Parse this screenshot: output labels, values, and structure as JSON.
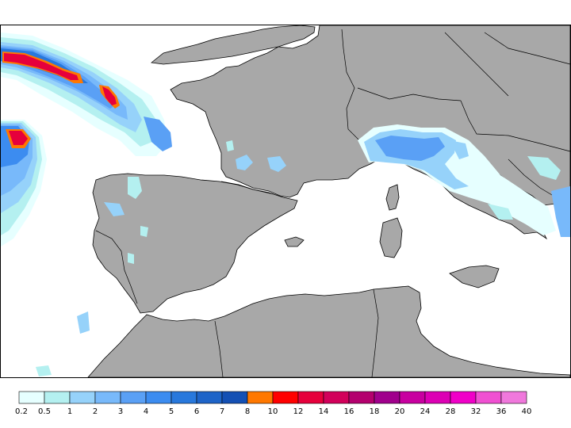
{
  "map": {
    "land_color": "#a8a8a8",
    "sea_color": "#ffffff",
    "border_color": "#000000"
  },
  "legend": {
    "colors": [
      "#e6ffff",
      "#b4f0f0",
      "#96d2fa",
      "#78b9fa",
      "#5aa0f5",
      "#3c8cf0",
      "#2878dc",
      "#1e64c8",
      "#1450b4",
      "#ff7800",
      "#ff0000",
      "#e6003c",
      "#d2005a",
      "#b4006e",
      "#a0008c",
      "#c800a0",
      "#dc00b4",
      "#f000c8",
      "#f050d2",
      "#f078dc"
    ],
    "ticks": [
      "0.2",
      "0.5",
      "1",
      "2",
      "3",
      "4",
      "5",
      "6",
      "7",
      "8",
      "10",
      "12",
      "14",
      "16",
      "18",
      "20",
      "24",
      "28",
      "32",
      "36",
      "40"
    ]
  }
}
